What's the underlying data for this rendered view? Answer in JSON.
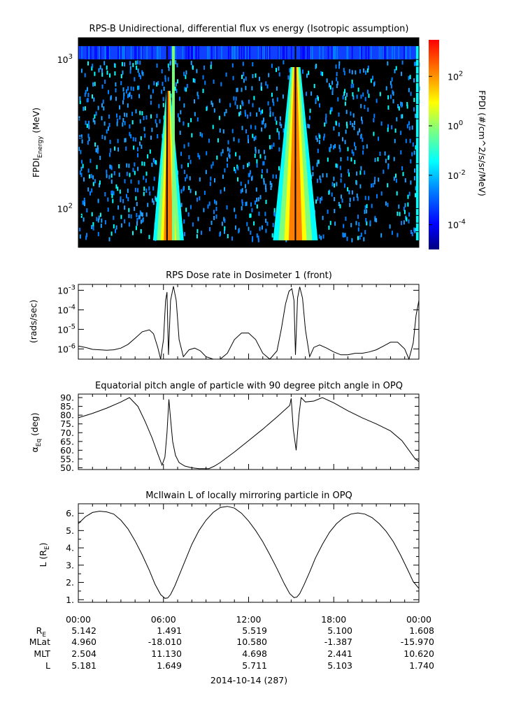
{
  "figure": {
    "date_label": "2014-10-14 (287)",
    "time_ticks": [
      "00:00",
      "06:00",
      "12:00",
      "18:00",
      "00:00"
    ],
    "ephemeris": {
      "row_labels": [
        "R",
        "MLat",
        "MLT",
        "L"
      ],
      "row_label_sub": "E",
      "rows": [
        [
          "5.142",
          "1.491",
          "5.519",
          "5.100",
          "1.608"
        ],
        [
          "4.960",
          "-18.010",
          "10.580",
          "-1.387",
          "-15.970"
        ],
        [
          "2.504",
          "11.130",
          "4.698",
          "2.441",
          "10.620"
        ],
        [
          "5.181",
          "1.649",
          "5.711",
          "5.103",
          "1.740"
        ]
      ]
    }
  },
  "chart_data": [
    {
      "type": "heatmap",
      "title": "RPS-B  Unidirectional, differential flux vs energy (Isotropic assumption)",
      "ylabel_main": "FPDI",
      "ylabel_sub": "Energy",
      "ylabel_unit": " (MeV)",
      "yscale": "log",
      "ylim": [
        55,
        1400
      ],
      "y_ticks": [
        {
          "base": "10",
          "exp": "2",
          "value": 100
        },
        {
          "base": "10",
          "exp": "3",
          "value": 1000
        }
      ],
      "x_range_hours": [
        0,
        24
      ],
      "colorbar": {
        "label": "FPDI (#/cm^2/s/sr/MeV)",
        "scale": "log",
        "range": [
          1e-05,
          3000
        ],
        "ticks": [
          {
            "base": "10",
            "exp": "-4",
            "value": 0.0001
          },
          {
            "base": "10",
            "exp": "-2",
            "value": 0.01
          },
          {
            "base": "10",
            "exp": "0",
            "value": 1
          },
          {
            "base": "10",
            "exp": "2",
            "value": 100
          }
        ],
        "colors": [
          "#00007f",
          "#0000ff",
          "#007fff",
          "#00ffff",
          "#7fff7f",
          "#ffff00",
          "#ff7f00",
          "#ff0000"
        ]
      },
      "belt_crossings_hours": [
        {
          "start": 5.9,
          "end": 7.1
        },
        {
          "start": 14.3,
          "end": 16.3
        }
      ],
      "no_data_color": "#000000"
    },
    {
      "type": "line",
      "title": "RPS  Dose rate in Dosimeter 1 (front)",
      "ylabel": "(rads/sec)",
      "yscale": "log",
      "ylim": [
        3e-07,
        0.002
      ],
      "y_ticks": [
        {
          "base": "10",
          "exp": "-6",
          "value": 1e-06
        },
        {
          "base": "10",
          "exp": "-5",
          "value": 1e-05
        },
        {
          "base": "10",
          "exp": "-4",
          "value": 0.0001
        },
        {
          "base": "10",
          "exp": "-3",
          "value": 0.001
        }
      ],
      "series": [
        {
          "x": [
            0,
            0.5,
            1,
            1.5,
            2,
            2.5,
            3,
            3.5,
            4,
            4.5,
            5,
            5.3,
            5.6,
            5.8,
            6,
            6.15,
            6.25,
            6.35,
            6.5,
            6.7,
            6.9,
            7.1,
            7.4,
            7.8,
            8.2,
            8.6,
            9,
            9.5,
            10,
            10.5,
            11,
            11.5,
            12,
            12.5,
            13,
            13.5,
            14,
            14.3,
            14.6,
            14.85,
            15.05,
            15.2,
            15.3,
            15.45,
            15.6,
            15.8,
            16,
            16.3,
            16.6,
            17,
            17.5,
            18,
            18.5,
            19,
            19.5,
            20,
            20.5,
            21,
            21.5,
            22,
            22.5,
            23,
            23.3,
            23.6,
            23.8,
            24
          ],
          "y": [
            1.4e-06,
            1.2e-06,
            9.5e-07,
            9e-07,
            8.5e-07,
            9e-07,
            1.1e-06,
            1.7e-06,
            3.5e-06,
            7.5e-06,
            9.5e-06,
            6e-06,
            1.2e-06,
            3e-07,
            3e-06,
            0.0003,
            0.0008,
            5e-07,
            0.0003,
            0.0016,
            0.0003,
            3e-06,
            4e-07,
            9e-07,
            1.1e-06,
            8e-07,
            4e-07,
            3e-07,
            3e-07,
            6e-07,
            3e-06,
            6.5e-06,
            6.5e-06,
            3e-06,
            6e-07,
            3e-07,
            8e-07,
            1e-05,
            0.0002,
            0.0009,
            0.0012,
            0.0003,
            5e-07,
            0.0004,
            0.0015,
            0.0004,
            1e-05,
            4e-07,
            1.2e-06,
            1.6e-06,
            1.1e-06,
            7e-07,
            5e-07,
            5e-07,
            6e-07,
            6e-07,
            7e-07,
            9e-07,
            1.4e-06,
            2.2e-06,
            2.2e-06,
            1e-06,
            3e-07,
            2e-06,
            5e-05,
            0.0003
          ]
        }
      ]
    },
    {
      "type": "line",
      "title": "Equatorial pitch angle of particle with 90 degree pitch angle in OPQ",
      "ylabel_main": "α",
      "ylabel_sub": "Eq",
      "ylabel_unit": " (deg)",
      "ylim": [
        49,
        92
      ],
      "y_ticks": [
        "50.",
        "55.",
        "60.",
        "65.",
        "70.",
        "75.",
        "80.",
        "85.",
        "90."
      ],
      "series": [
        {
          "x": [
            0,
            1,
            2,
            3,
            3.6,
            4.2,
            4.7,
            5.2,
            5.6,
            5.9,
            6.1,
            6.25,
            6.38,
            6.5,
            6.65,
            6.85,
            7.1,
            7.5,
            8,
            8.5,
            9.2,
            9.6,
            10,
            11,
            12,
            13,
            14,
            14.9,
            15,
            15.15,
            15.35,
            15.55,
            15.7,
            16,
            16.6,
            17.2,
            18,
            19,
            20,
            21,
            22,
            22.8,
            23.3,
            23.7,
            24
          ],
          "y": [
            78.5,
            81,
            84,
            87.5,
            90,
            85,
            76.5,
            67,
            58,
            51.5,
            56,
            70,
            89,
            78,
            65,
            57,
            53,
            51,
            50,
            49.5,
            49.5,
            51,
            53,
            59,
            65.5,
            72,
            79,
            85.5,
            89.5,
            72,
            60,
            80,
            90,
            87.5,
            88,
            90,
            87,
            82.5,
            78.5,
            75,
            71,
            65.5,
            60,
            55.5,
            53.5
          ]
        }
      ]
    },
    {
      "type": "line",
      "title": "McIlwain L of locally mirroring particle in OPQ",
      "ylabel_main": "L (R",
      "ylabel_sub": "E",
      "ylabel_unit": ")",
      "ylim": [
        0.85,
        6.55
      ],
      "y_ticks": [
        "1.",
        "2.",
        "3.",
        "4.",
        "5.",
        "6."
      ],
      "series": [
        {
          "x": [
            0,
            0.5,
            1,
            1.5,
            2,
            2.5,
            3,
            3.5,
            4,
            4.5,
            5,
            5.4,
            5.8,
            6.1,
            6.3,
            6.5,
            6.8,
            7.2,
            7.6,
            8,
            8.5,
            9,
            9.5,
            10,
            10.5,
            11,
            11.5,
            12,
            12.5,
            13,
            13.5,
            14,
            14.5,
            14.9,
            15.2,
            15.4,
            15.6,
            15.9,
            16.3,
            16.7,
            17.2,
            17.7,
            18.2,
            18.7,
            19.2,
            19.7,
            20.2,
            20.7,
            21.2,
            21.7,
            22.2,
            22.7,
            23.2,
            23.6,
            24
          ],
          "y": [
            5.4,
            5.8,
            6.05,
            6.12,
            6.08,
            5.95,
            5.6,
            5.1,
            4.4,
            3.6,
            2.7,
            1.9,
            1.3,
            1.08,
            1.1,
            1.3,
            1.8,
            2.6,
            3.4,
            4.2,
            5.0,
            5.6,
            6.05,
            6.33,
            6.4,
            6.3,
            6.0,
            5.55,
            5.0,
            4.35,
            3.6,
            2.8,
            1.95,
            1.35,
            1.12,
            1.15,
            1.35,
            1.85,
            2.6,
            3.4,
            4.2,
            4.9,
            5.4,
            5.75,
            5.95,
            6.02,
            5.95,
            5.75,
            5.4,
            4.95,
            4.35,
            3.6,
            2.75,
            2.05,
            1.65
          ]
        }
      ]
    }
  ]
}
